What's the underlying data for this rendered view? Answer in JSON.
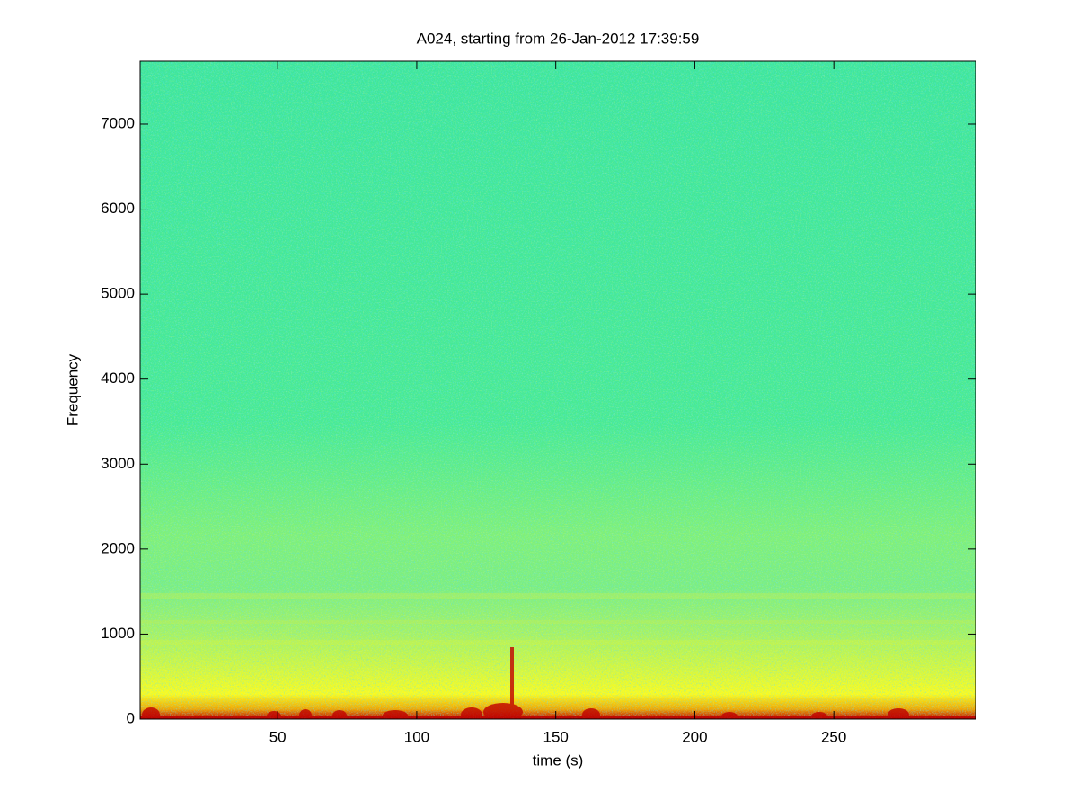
{
  "chart_data": {
    "type": "spectrogram",
    "title": "A024, starting from 26-Jan-2012 17:39:59",
    "x_label": "time (s)",
    "y_label": "Frequency",
    "xlim": [
      0.5,
      301
    ],
    "ylim": [
      0,
      7740
    ],
    "xticks": [
      50,
      100,
      150,
      200,
      250
    ],
    "yticks": [
      0,
      1000,
      2000,
      3000,
      4000,
      5000,
      6000,
      7000
    ]
  }
}
